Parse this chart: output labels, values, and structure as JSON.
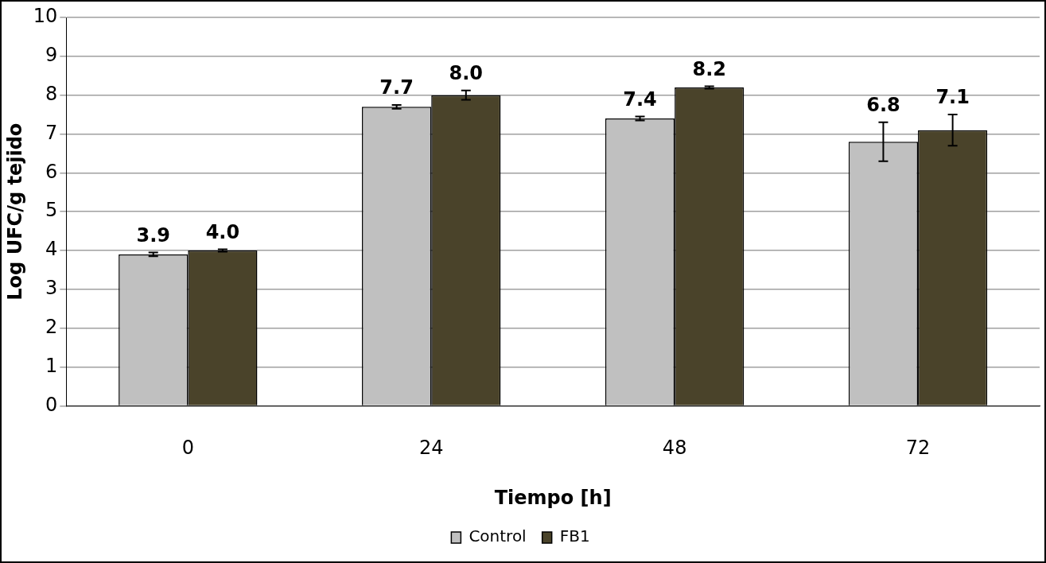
{
  "chart_data": {
    "type": "bar",
    "xlabel": "Tiempo [h]",
    "ylabel": "Log UFC/g tejido",
    "categories": [
      "0",
      "24",
      "48",
      "72"
    ],
    "series": [
      {
        "name": "Control",
        "color": "#c0c0c0",
        "values": [
          3.9,
          7.7,
          7.4,
          6.8
        ],
        "value_labels": [
          "3.9",
          "7.7",
          "7.4",
          "6.8"
        ],
        "errors": [
          0.05,
          0.05,
          0.05,
          0.5
        ]
      },
      {
        "name": "FB1",
        "color": "#4a432a",
        "values": [
          4.0,
          8.0,
          8.2,
          7.1
        ],
        "value_labels": [
          "4.0",
          "8.0",
          "8.2",
          "7.1"
        ],
        "errors": [
          0.03,
          0.12,
          0.03,
          0.4
        ]
      }
    ],
    "ylim": [
      0,
      10
    ],
    "yticks": [
      0,
      1,
      2,
      3,
      4,
      5,
      6,
      7,
      8,
      9,
      10
    ],
    "grid": "y",
    "legend": "bottom"
  }
}
